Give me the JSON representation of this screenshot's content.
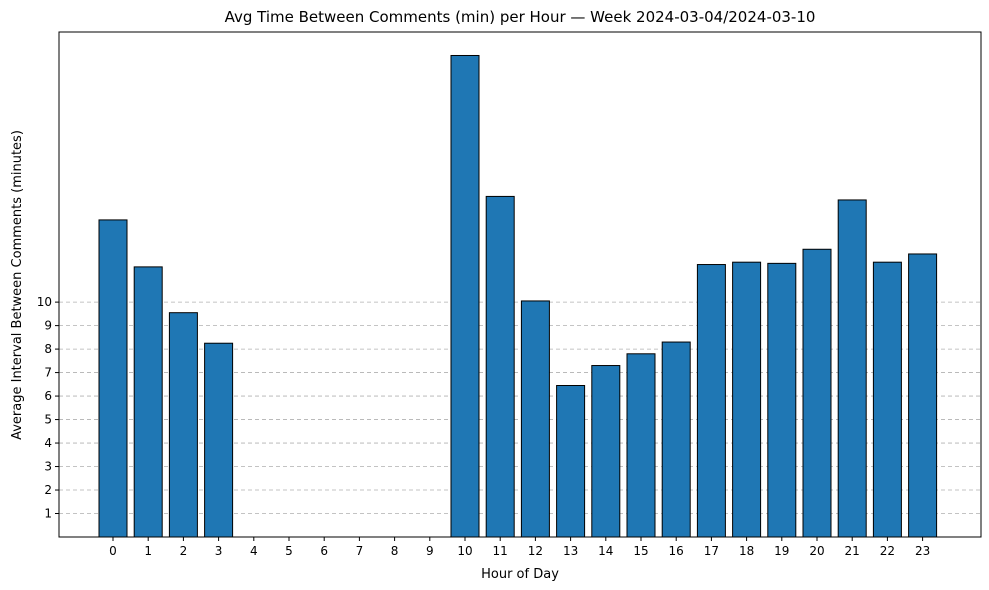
{
  "chart_data": {
    "type": "bar",
    "title": "Avg Time Between Comments (min) per Hour — Week 2024-03-04/2024-03-10",
    "xlabel": "Hour of Day",
    "ylabel": "Average Interval Between Comments (minutes)",
    "categories": [
      "0",
      "1",
      "2",
      "3",
      "4",
      "5",
      "6",
      "7",
      "8",
      "9",
      "10",
      "11",
      "12",
      "13",
      "14",
      "15",
      "16",
      "17",
      "18",
      "19",
      "20",
      "21",
      "22",
      "23"
    ],
    "values": [
      13.5,
      11.5,
      9.55,
      8.25,
      0,
      0,
      0,
      0,
      0,
      0,
      20.5,
      14.5,
      10.05,
      6.45,
      7.3,
      7.8,
      8.3,
      11.6,
      11.7,
      11.65,
      12.25,
      14.35,
      11.7,
      12.05
    ],
    "y_ticks": [
      1,
      2,
      3,
      4,
      5,
      6,
      7,
      8,
      9,
      10
    ],
    "ylim": [
      0,
      21.5
    ],
    "grid": "y-dashed",
    "bar_color": "#1f77b4",
    "edge_color": "#000000",
    "grid_color": "#b0b0b0"
  }
}
